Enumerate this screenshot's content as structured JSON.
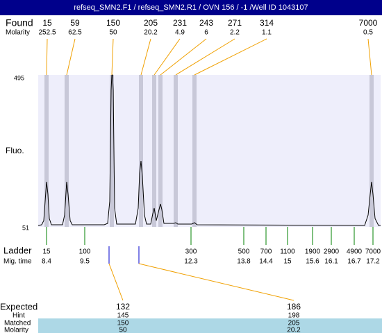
{
  "title": "refseq_SMN2.F1  / refseq_SMN2.R1 / OVN 156 / -1 /Well ID 1043107",
  "found": {
    "label": "Found",
    "values": [
      15,
      59,
      150,
      205,
      231,
      243,
      271,
      314,
      7000
    ]
  },
  "found_molarity": {
    "label": "Molarity",
    "values": [
      252.5,
      62.5,
      50,
      20.2,
      4.9,
      6,
      2.2,
      1.1,
      0.5
    ]
  },
  "y_axis": {
    "label": "Fluo.",
    "top": 495,
    "bottom": 51
  },
  "ladder": {
    "label": "Ladder",
    "values": [
      15,
      100,
      300,
      500,
      700,
      1100,
      1900,
      2900,
      4900,
      7000
    ]
  },
  "mig_time": {
    "label": "Mig. time",
    "values": [
      8.4,
      9.5,
      12.3,
      13.8,
      14.4,
      15,
      15.6,
      16.1,
      16.7,
      17.2
    ]
  },
  "expected": {
    "label": "Expected",
    "values": [
      132,
      186
    ]
  },
  "hint": {
    "label": "Hint",
    "values": [
      145,
      198
    ]
  },
  "matched": {
    "label": "Matched",
    "values": [
      150,
      205
    ]
  },
  "matched_molarity": {
    "label": "Molarity",
    "values": [
      50,
      20.2
    ]
  }
}
